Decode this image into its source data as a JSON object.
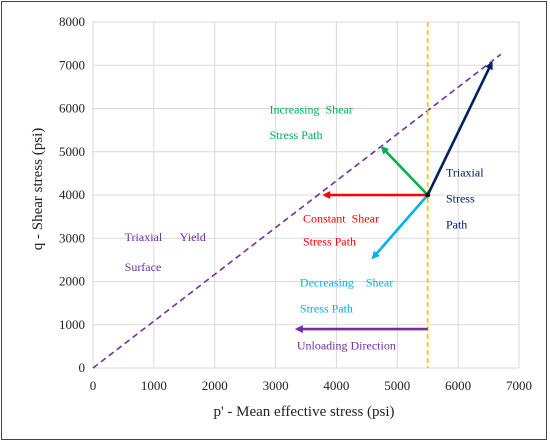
{
  "chart_data": {
    "type": "line",
    "xlabel": "p' - Mean effective stress (psi)",
    "ylabel": "q - Shear stress (psi)",
    "xlim": [
      0,
      7000
    ],
    "ylim": [
      0,
      8000
    ],
    "x_ticks": [
      0,
      1000,
      2000,
      3000,
      4000,
      5000,
      6000,
      7000
    ],
    "y_ticks": [
      0,
      1000,
      2000,
      3000,
      4000,
      5000,
      6000,
      7000,
      8000
    ],
    "grid": true,
    "yield_surface": {
      "x": [
        0,
        6700
      ],
      "y": [
        0,
        7250
      ],
      "color": "#7030a0",
      "style": "dashed"
    },
    "initial_state_line": {
      "x": 5500,
      "color": "#ffc000",
      "style": "dashed"
    },
    "initial_point": {
      "x": 5500,
      "y": 4000
    },
    "arrows": [
      {
        "x": [
          5500,
          6550
        ],
        "y": [
          4000,
          7050
        ],
        "color": "#002060"
      },
      {
        "x": [
          5500,
          4750
        ],
        "y": [
          4000,
          5100
        ],
        "color": "#00b050"
      },
      {
        "x": [
          5500,
          3800
        ],
        "y": [
          4000,
          4000
        ],
        "color": "#ff0000"
      },
      {
        "x": [
          5500,
          4600
        ],
        "y": [
          4000,
          2550
        ],
        "color": "#00b0f0"
      },
      {
        "x": [
          5500,
          3350
        ],
        "y": [
          900,
          900
        ],
        "color": "#7030a0"
      }
    ],
    "annotations": [
      {
        "lines": [
          "Triaxial",
          "Stress",
          "Path"
        ],
        "x": 5800,
        "y": [
          4430,
          3830,
          3230
        ],
        "color": "#002060"
      },
      {
        "lines": [
          "Increasing  Shear",
          "Stress Path"
        ],
        "x": 2900,
        "y": [
          5890,
          5290
        ],
        "color": "#00b050"
      },
      {
        "lines": [
          "Constant  Shear",
          "Stress Path"
        ],
        "x": 3450,
        "y": [
          3360,
          2830
        ],
        "color": "#ff0000"
      },
      {
        "lines": [
          "Decreasing    Shear",
          "Stress Path"
        ],
        "x": 3400,
        "y": [
          1880,
          1280
        ],
        "color": "#00b0f0"
      },
      {
        "lines": [
          "Unloading Direction"
        ],
        "x": 3350,
        "y": [
          430
        ],
        "color": "#7030a0"
      },
      {
        "lines": [
          "Triaxial      Yield",
          "Surface"
        ],
        "x": 520,
        "y": [
          2940,
          2240
        ],
        "color": "#7030a0"
      }
    ]
  }
}
